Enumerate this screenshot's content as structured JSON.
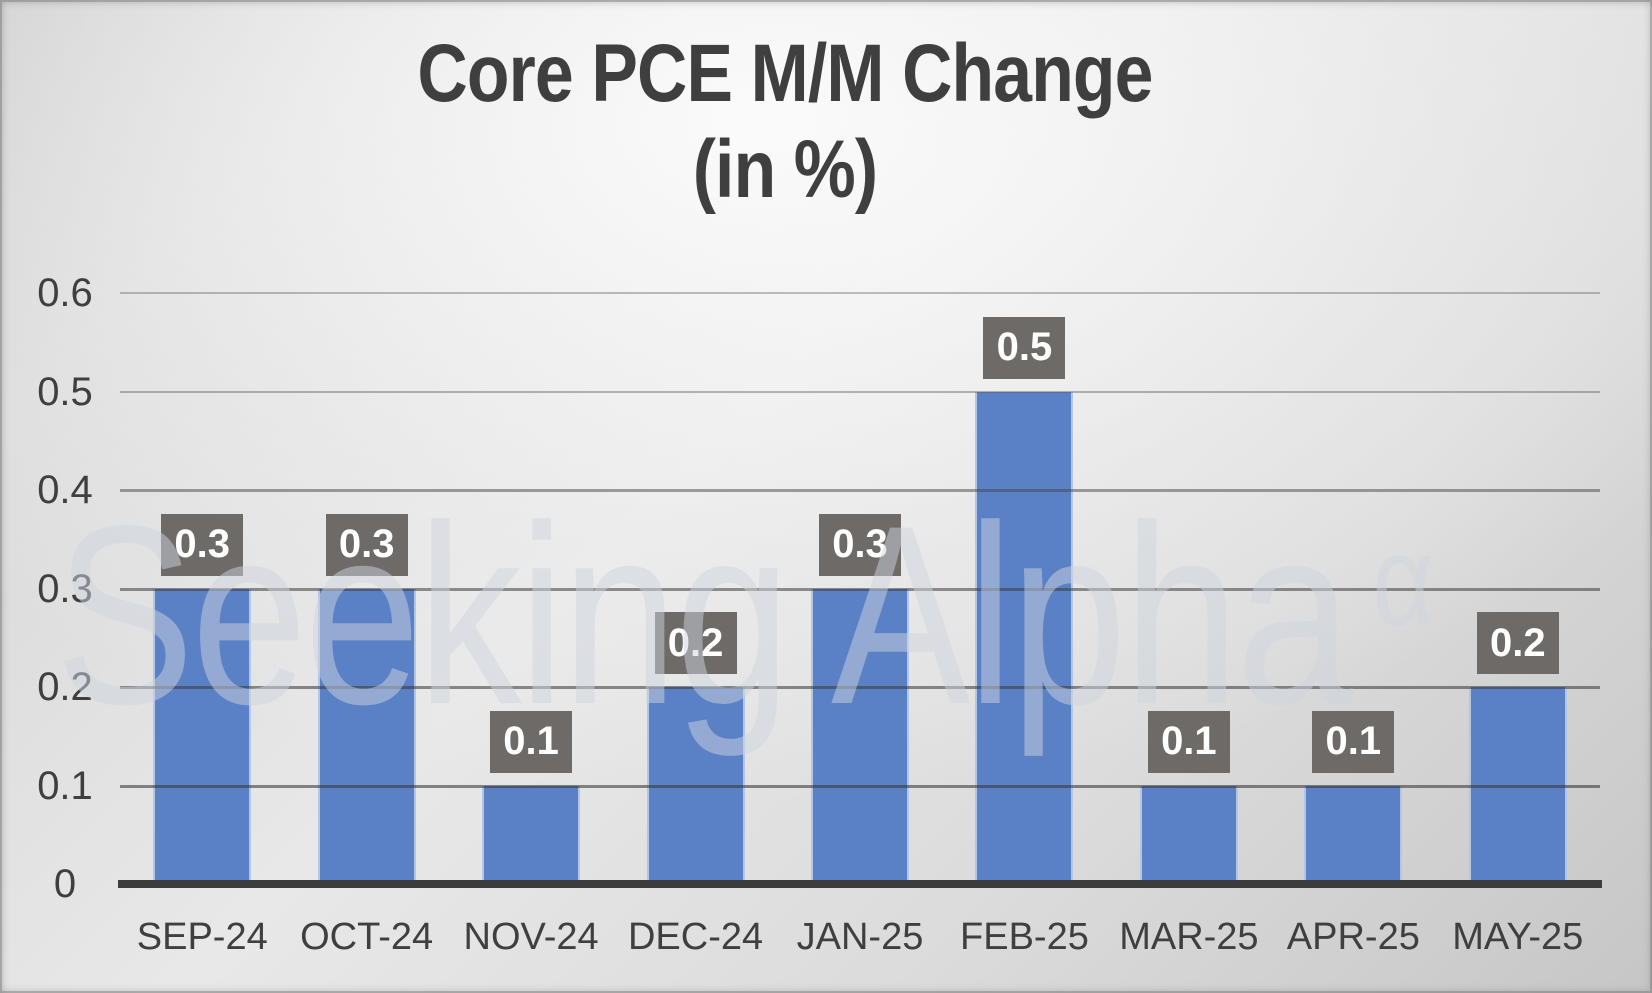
{
  "title": {
    "line1": "Core PCE M/M Change",
    "line2": "(in %)"
  },
  "watermark": {
    "text": "Seeking Alpha",
    "glyph": "α"
  },
  "colors": {
    "bar": "#5A80C6",
    "value_box_bg": "#6E6A67",
    "value_box_text": "#FFFFFF",
    "axis_line": "#3C3C3C",
    "tick_text": "#3F3F3F",
    "title_text": "#3F3F3F",
    "gridline": "#8F8F8F"
  },
  "chart_data": {
    "type": "bar",
    "title": "Core PCE M/M Change (in %)",
    "categories": [
      "SEP-24",
      "OCT-24",
      "NOV-24",
      "DEC-24",
      "JAN-25",
      "FEB-25",
      "MAR-25",
      "APR-25",
      "MAY-25"
    ],
    "values": [
      0.3,
      0.3,
      0.1,
      0.2,
      0.3,
      0.5,
      0.1,
      0.1,
      0.2
    ],
    "data_labels": [
      "0.3",
      "0.3",
      "0.1",
      "0.2",
      "0.3",
      "0.5",
      "0.1",
      "0.1",
      "0.2"
    ],
    "xlabel": "",
    "ylabel": "",
    "ylim": [
      0,
      0.6
    ],
    "yticks": [
      0,
      0.1,
      0.2,
      0.3,
      0.4,
      0.5,
      0.6
    ],
    "ytick_labels": [
      "0",
      "0.1",
      "0.2",
      "0.3",
      "0.4",
      "0.5",
      "0.6"
    ],
    "grid": true,
    "legend": false
  }
}
